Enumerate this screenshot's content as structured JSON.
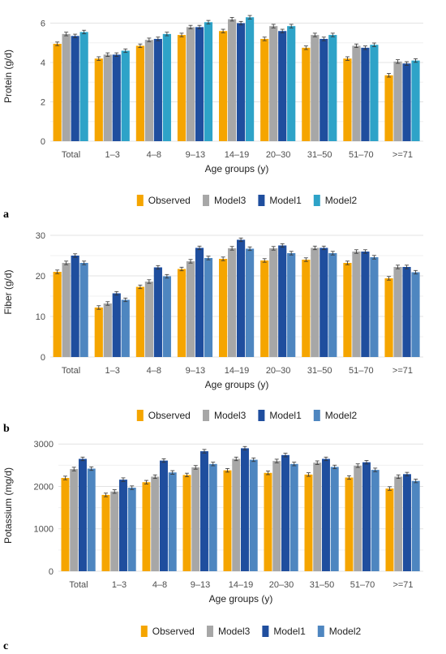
{
  "colors": {
    "Observed": "#F5A500",
    "Model3": "#A7A7A7",
    "Model1": "#1F4E9E",
    "Model2": "#2EA3C8",
    "Model2_c": "#4E86C0",
    "grid": "#E3E3E3",
    "axis_text": "#4D4D4D"
  },
  "chart_data": [
    {
      "type": "bar",
      "panel_label": "a",
      "xlabel": "Age groups (y)",
      "ylabel": "Protein (g/d)",
      "ylim": [
        0,
        6.6
      ],
      "yticks": [
        0,
        2,
        4,
        6
      ],
      "grid": true,
      "legend_position": "bottom",
      "categories": [
        "Total",
        "1–3",
        "4–8",
        "9–13",
        "14–19",
        "20–30",
        "31–50",
        "51–70",
        ">=71"
      ],
      "series": [
        {
          "name": "Observed",
          "values": [
            4.95,
            4.2,
            4.85,
            5.4,
            5.6,
            5.2,
            4.75,
            4.2,
            3.35
          ]
        },
        {
          "name": "Model3",
          "values": [
            5.45,
            4.4,
            5.15,
            5.8,
            6.2,
            5.85,
            5.4,
            4.85,
            4.05
          ]
        },
        {
          "name": "Model1",
          "values": [
            5.35,
            4.4,
            5.2,
            5.8,
            6.0,
            5.6,
            5.2,
            4.75,
            3.95
          ]
        },
        {
          "name": "Model2",
          "values": [
            5.55,
            4.6,
            5.45,
            6.05,
            6.3,
            5.85,
            5.4,
            4.9,
            4.1
          ]
        }
      ]
    },
    {
      "type": "bar",
      "panel_label": "b",
      "xlabel": "Age groups (y)",
      "ylabel": "Fiber (g/d)",
      "ylim": [
        0,
        32
      ],
      "yticks": [
        0,
        10,
        20,
        30
      ],
      "grid": true,
      "legend_position": "bottom",
      "categories": [
        "Total",
        "1–3",
        "4–8",
        "9–13",
        "14–19",
        "20–30",
        "31–50",
        "51–70",
        ">=71"
      ],
      "series": [
        {
          "name": "Observed",
          "values": [
            21.0,
            12.2,
            17.3,
            21.7,
            24.2,
            23.8,
            24.0,
            23.2,
            19.4
          ]
        },
        {
          "name": "Model3",
          "values": [
            23.2,
            13.2,
            18.6,
            23.6,
            26.8,
            26.8,
            26.9,
            26.0,
            22.2
          ]
        },
        {
          "name": "Model1",
          "values": [
            25.0,
            15.7,
            22.1,
            26.9,
            28.9,
            27.5,
            26.9,
            26.0,
            22.2
          ]
        },
        {
          "name": "Model2",
          "values": [
            23.2,
            14.1,
            19.9,
            24.4,
            26.7,
            25.6,
            25.6,
            24.6,
            20.9
          ]
        }
      ]
    },
    {
      "type": "bar",
      "panel_label": "c",
      "xlabel": "Age groups (y)",
      "ylabel": "Potassium (mg/d)",
      "ylim": [
        0,
        3100
      ],
      "yticks": [
        0,
        1000,
        2000,
        3000
      ],
      "grid": true,
      "legend_position": "bottom",
      "categories": [
        "Total",
        "1–3",
        "4–8",
        "9–13",
        "14–19",
        "20–30",
        "31–50",
        "51–70",
        ">=71"
      ],
      "series": [
        {
          "name": "Observed",
          "values": [
            2200,
            1800,
            2100,
            2270,
            2380,
            2320,
            2280,
            2210,
            1950
          ]
        },
        {
          "name": "Model3",
          "values": [
            2410,
            1880,
            2230,
            2450,
            2650,
            2600,
            2560,
            2490,
            2230
          ]
        },
        {
          "name": "Model1",
          "values": [
            2650,
            2160,
            2610,
            2830,
            2900,
            2740,
            2650,
            2570,
            2290
          ]
        },
        {
          "name": "Model2",
          "values": [
            2420,
            1970,
            2330,
            2530,
            2630,
            2530,
            2460,
            2390,
            2130
          ]
        }
      ]
    }
  ]
}
